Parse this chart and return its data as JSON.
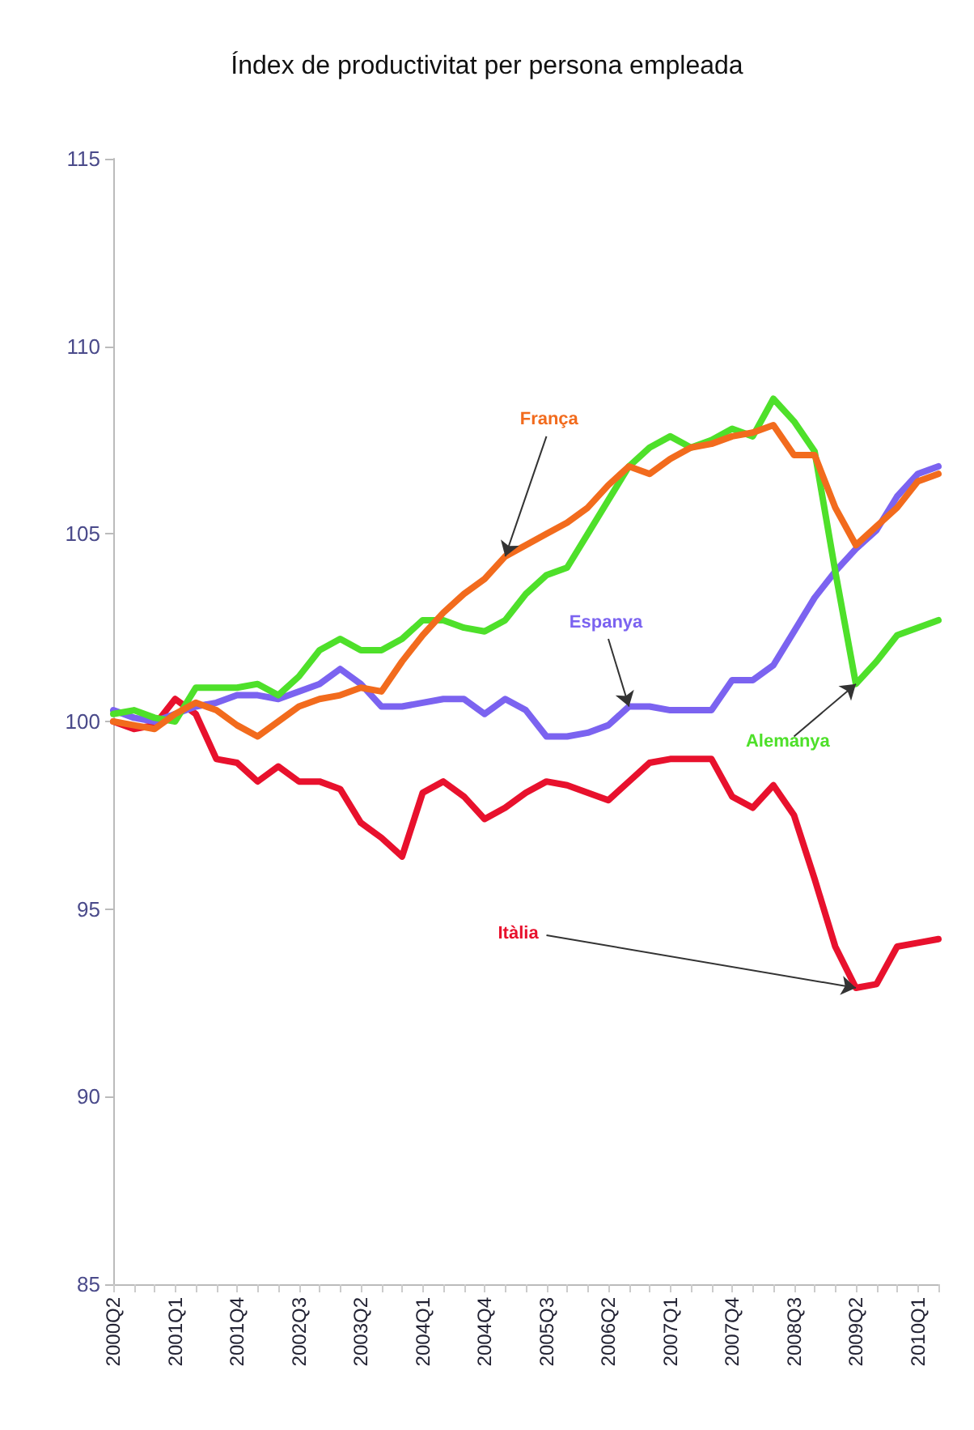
{
  "chart_data": {
    "type": "line",
    "title": "Índex de productivitat per persona empleada",
    "categories": [
      "2000Q2",
      null,
      null,
      "2001Q1",
      null,
      null,
      "2001Q4",
      null,
      null,
      "2002Q3",
      null,
      null,
      "2003Q2",
      null,
      null,
      "2004Q1",
      null,
      null,
      "2004Q4",
      null,
      null,
      "2005Q3",
      null,
      null,
      "2006Q2",
      null,
      null,
      "2007Q1",
      null,
      null,
      "2007Q4",
      null,
      null,
      "2008Q3",
      null,
      null,
      "2009Q2",
      null,
      null,
      "2010Q1",
      null
    ],
    "series": [
      {
        "name": "Itàlia",
        "color": "#e8112d",
        "values": [
          100.0,
          99.8,
          99.9,
          100.6,
          100.2,
          99.0,
          98.9,
          98.4,
          98.8,
          98.4,
          98.4,
          98.2,
          97.3,
          96.9,
          96.4,
          98.1,
          98.4,
          98.0,
          97.4,
          97.7,
          98.1,
          98.4,
          98.3,
          98.1,
          97.9,
          98.4,
          98.9,
          99.0,
          99.0,
          99.0,
          98.0,
          97.7,
          98.3,
          97.5,
          95.8,
          94.0,
          92.9,
          93.0,
          94.0,
          94.1,
          94.2
        ]
      },
      {
        "name": "Espanya",
        "color": "#7b63f0",
        "values": [
          100.3,
          100.1,
          100.0,
          100.2,
          100.4,
          100.5,
          100.7,
          100.7,
          100.6,
          100.8,
          101.0,
          101.4,
          101.0,
          100.4,
          100.4,
          100.5,
          100.6,
          100.6,
          100.2,
          100.6,
          100.3,
          99.6,
          99.6,
          99.7,
          99.9,
          100.4,
          100.4,
          100.3,
          100.3,
          100.3,
          101.1,
          101.1,
          101.5,
          102.4,
          103.3,
          104.0,
          104.6,
          105.1,
          106.0,
          106.6,
          106.8
        ]
      },
      {
        "name": "Alemanya",
        "color": "#4ee02a",
        "values": [
          100.2,
          100.3,
          100.1,
          100.0,
          100.9,
          100.9,
          100.9,
          101.0,
          100.7,
          101.2,
          101.9,
          102.2,
          101.9,
          101.9,
          102.2,
          102.7,
          102.7,
          102.5,
          102.4,
          102.7,
          103.4,
          103.9,
          104.1,
          105.0,
          105.9,
          106.8,
          107.3,
          107.6,
          107.3,
          107.5,
          107.8,
          107.6,
          108.6,
          108.0,
          107.2,
          104.0,
          101.0,
          101.6,
          102.3,
          102.5,
          102.7
        ]
      },
      {
        "name": "França",
        "color": "#f26b1d",
        "values": [
          100.0,
          99.9,
          99.8,
          100.2,
          100.5,
          100.3,
          99.9,
          99.6,
          100.0,
          100.4,
          100.6,
          100.7,
          100.9,
          100.8,
          101.6,
          102.3,
          102.9,
          103.4,
          103.8,
          104.4,
          104.7,
          105.0,
          105.3,
          105.7,
          106.3,
          106.8,
          106.6,
          107.0,
          107.3,
          107.4,
          107.6,
          107.7,
          107.9,
          107.1,
          107.1,
          105.7,
          104.7,
          105.2,
          105.7,
          106.4,
          106.6
        ]
      }
    ],
    "ylim": [
      85,
      115
    ],
    "yticks": [
      85,
      90,
      95,
      100,
      105,
      110,
      115
    ],
    "grid": false,
    "legend": false,
    "marker": "none",
    "line_style": "solid"
  }
}
